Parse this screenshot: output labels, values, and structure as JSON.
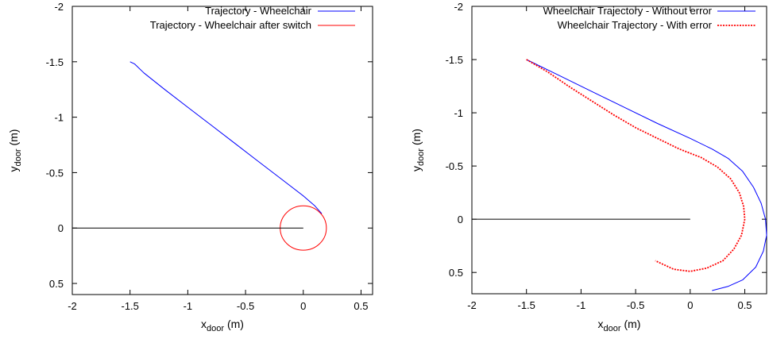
{
  "chart_data": [
    {
      "type": "line",
      "xlabel": {
        "base": "x",
        "sub": "door",
        "unit": " (m)"
      },
      "ylabel": {
        "base": "y",
        "sub": "door",
        "unit": " (m)"
      },
      "xlim": [
        -2,
        0.6
      ],
      "ylim": [
        0.6,
        -2
      ],
      "y_inverted": true,
      "xticks": [
        -2,
        -1.5,
        -1,
        -0.5,
        0,
        0.5
      ],
      "yticks": [
        -2,
        -1.5,
        -1,
        -0.5,
        0,
        0.5
      ],
      "xtick_labels": [
        "-2",
        "-1.5",
        "-1",
        "-0.5",
        "0",
        "0.5"
      ],
      "ytick_labels": [
        "-2",
        "-1.5",
        "-1",
        "-0.5",
        "0",
        "0.5"
      ],
      "grid": false,
      "legend_position": "top-right",
      "series": [
        {
          "name": "Trajectory - Wheelchair",
          "color": "#0000ff",
          "dash": "solid",
          "x": [
            -1.5,
            -1.46,
            -1.38,
            -1.2,
            -1.0,
            -0.8,
            -0.6,
            -0.4,
            -0.2,
            0.0,
            0.1,
            0.16
          ],
          "y": [
            -1.5,
            -1.48,
            -1.4,
            -1.25,
            -1.09,
            -0.93,
            -0.77,
            -0.61,
            -0.45,
            -0.29,
            -0.2,
            -0.13
          ]
        },
        {
          "name": "Trajectory - Wheelchair after switch",
          "color": "#ff0000",
          "dash": "solid",
          "circle": {
            "cx": 0.0,
            "cy": 0.0,
            "r": 0.2
          }
        },
        {
          "name": "",
          "color": "#000000",
          "dash": "solid",
          "x": [
            -2,
            0
          ],
          "y": [
            0,
            0
          ]
        }
      ]
    },
    {
      "type": "line",
      "xlabel": {
        "base": "x",
        "sub": "door",
        "unit": " (m)"
      },
      "ylabel": {
        "base": "y",
        "sub": "door",
        "unit": " (m)"
      },
      "xlim": [
        -2,
        0.7
      ],
      "ylim": [
        0.7,
        -2
      ],
      "y_inverted": true,
      "xticks": [
        -2,
        -1.5,
        -1,
        -0.5,
        0,
        0.5
      ],
      "yticks": [
        -2,
        -1.5,
        -1,
        -0.5,
        0,
        0.5
      ],
      "xtick_labels": [
        "-2",
        "-1.5",
        "-1",
        "-0.5",
        "0",
        "0.5"
      ],
      "ytick_labels": [
        "-2",
        "-1.5",
        "-1",
        "-0.5",
        "0",
        "0.5"
      ],
      "grid": false,
      "legend_position": "top-right",
      "series": [
        {
          "name": "Wheelchair Trajectory -  Without error",
          "color": "#0000ff",
          "dash": "solid",
          "x": [
            -1.5,
            -1.2,
            -0.9,
            -0.6,
            -0.3,
            0.0,
            0.2,
            0.35,
            0.48,
            0.58,
            0.65,
            0.69,
            0.7,
            0.67,
            0.6,
            0.48,
            0.35,
            0.2
          ],
          "y": [
            -1.5,
            -1.35,
            -1.2,
            -1.05,
            -0.9,
            -0.76,
            -0.66,
            -0.57,
            -0.45,
            -0.3,
            -0.15,
            0.0,
            0.15,
            0.3,
            0.45,
            0.57,
            0.63,
            0.67
          ]
        },
        {
          "name": "Wheelchair Trajectory - With error",
          "color": "#ff0000",
          "dash": "dotted",
          "x": [
            -1.5,
            -1.3,
            -1.1,
            -0.9,
            -0.7,
            -0.5,
            -0.3,
            -0.1,
            0.1,
            0.25,
            0.37,
            0.45,
            0.49,
            0.5,
            0.47,
            0.4,
            0.3,
            0.15,
            0.0,
            -0.15,
            -0.32
          ],
          "y": [
            -1.5,
            -1.38,
            -1.24,
            -1.11,
            -0.98,
            -0.86,
            -0.76,
            -0.66,
            -0.58,
            -0.49,
            -0.38,
            -0.25,
            -0.12,
            0.0,
            0.15,
            0.28,
            0.39,
            0.46,
            0.49,
            0.47,
            0.39
          ]
        },
        {
          "name": "",
          "color": "#000000",
          "dash": "solid",
          "x": [
            -2,
            0
          ],
          "y": [
            0,
            0
          ]
        }
      ]
    }
  ]
}
